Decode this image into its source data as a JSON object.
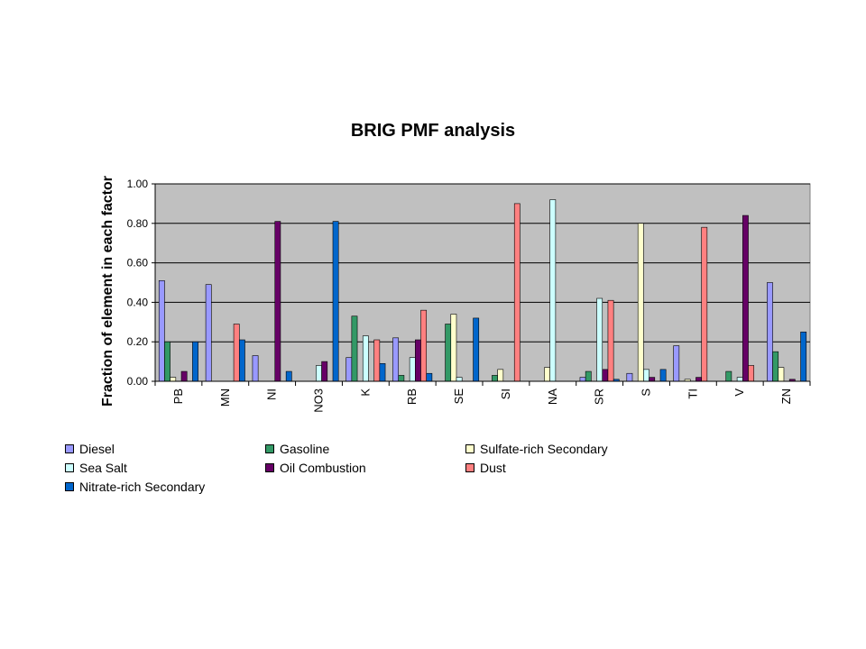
{
  "chart_data": {
    "type": "bar",
    "title": "BRIG PMF analysis",
    "xlabel": "",
    "ylabel": "Fraction of element in each factor",
    "ylim": [
      0,
      1.0
    ],
    "yticks": [
      "0.00",
      "0.20",
      "0.40",
      "0.60",
      "0.80",
      "1.00"
    ],
    "grid": true,
    "legend_position": "bottom",
    "categories": [
      "PB",
      "MN",
      "NI",
      "NO3",
      "K",
      "RB",
      "SE",
      "SI",
      "NA",
      "SR",
      "S",
      "TI",
      "V",
      "ZN"
    ],
    "series": [
      {
        "name": "Diesel",
        "color": "#9999ff",
        "values": [
          0.51,
          0.49,
          0.13,
          0.0,
          0.12,
          0.22,
          0.0,
          0.0,
          0.0,
          0.02,
          0.04,
          0.18,
          0.0,
          0.5
        ]
      },
      {
        "name": "Gasoline",
        "color": "#339966",
        "values": [
          0.2,
          0.0,
          0.0,
          0.0,
          0.33,
          0.03,
          0.29,
          0.03,
          0.0,
          0.05,
          0.0,
          0.0,
          0.05,
          0.15
        ]
      },
      {
        "name": "Sulfate-rich Secondary",
        "color": "#ffffcc",
        "values": [
          0.02,
          0.0,
          0.0,
          0.0,
          0.0,
          0.0,
          0.34,
          0.06,
          0.07,
          0.0,
          0.8,
          0.01,
          0.0,
          0.07
        ]
      },
      {
        "name": "Sea Salt",
        "color": "#ccffff",
        "values": [
          0.0,
          0.0,
          0.0,
          0.08,
          0.23,
          0.12,
          0.02,
          0.0,
          0.92,
          0.42,
          0.06,
          0.0,
          0.02,
          0.0
        ]
      },
      {
        "name": "Oil Combustion",
        "color": "#660066",
        "values": [
          0.05,
          0.0,
          0.81,
          0.1,
          0.0,
          0.21,
          0.0,
          0.0,
          0.0,
          0.06,
          0.02,
          0.02,
          0.84,
          0.01
        ]
      },
      {
        "name": "Dust",
        "color": "#ff8080",
        "values": [
          0.0,
          0.29,
          0.0,
          0.0,
          0.21,
          0.36,
          0.0,
          0.9,
          0.0,
          0.41,
          0.0,
          0.78,
          0.08,
          0.0
        ]
      },
      {
        "name": "Nitrate-rich Secondary",
        "color": "#0066cc",
        "values": [
          0.2,
          0.21,
          0.05,
          0.81,
          0.09,
          0.04,
          0.32,
          0.0,
          0.0,
          0.01,
          0.06,
          0.0,
          0.0,
          0.25
        ]
      }
    ],
    "plot_background": "#c0c0c0"
  }
}
